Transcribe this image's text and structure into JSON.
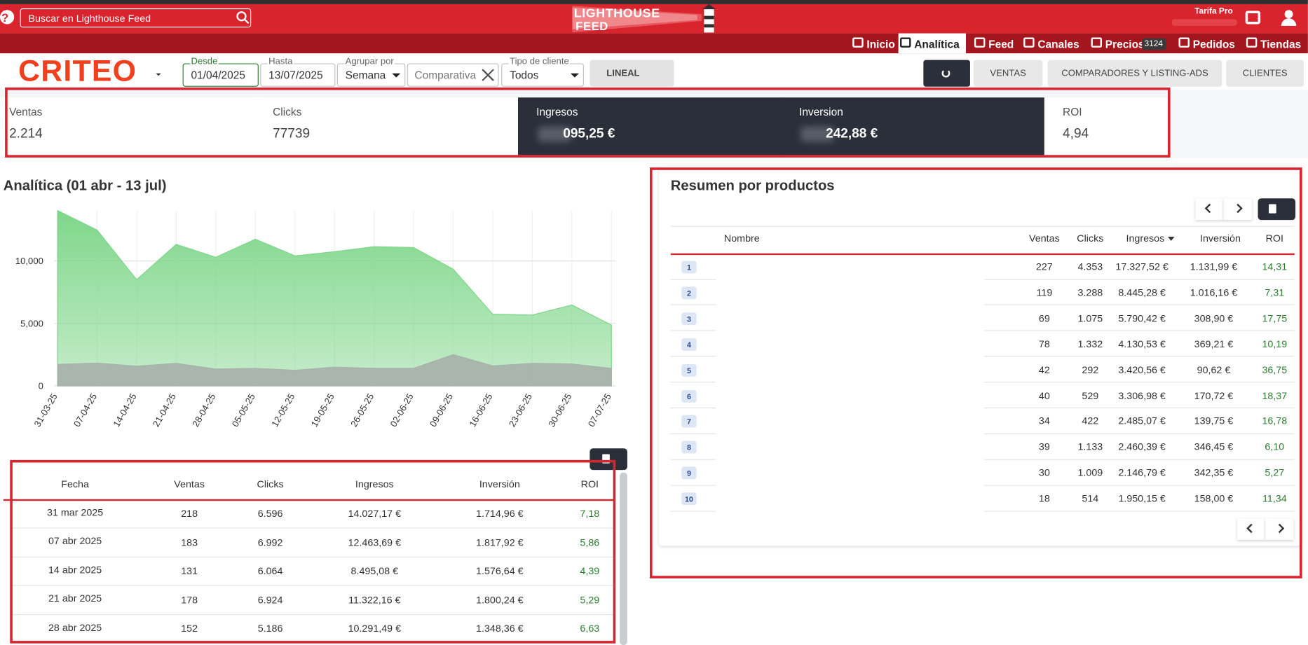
{
  "header": {
    "help": "?",
    "search_placeholder": "Buscar en Lighthouse Feed",
    "logo_line1": "LIGHTHOUSE",
    "logo_line2": "FEED",
    "plan": "Tarifa Pro"
  },
  "nav": [
    {
      "label": "Inicio"
    },
    {
      "label": "Analítica"
    },
    {
      "label": "Feed"
    },
    {
      "label": "Canales"
    },
    {
      "label": "Precios",
      "badge": "3124"
    },
    {
      "label": "Pedidos"
    },
    {
      "label": "Tiendas"
    }
  ],
  "filters": {
    "brand": "CRITEO",
    "fields": [
      {
        "label": "Desde",
        "value": "01/04/2025"
      },
      {
        "label": "Hasta",
        "value": "13/07/2025"
      },
      {
        "label": "Agrupar por",
        "value": "Semana"
      },
      {
        "label": "Tipo de cliente",
        "value": "Todos"
      }
    ],
    "comparison_placeholder": "Comparativa",
    "mode_button": "LINEAL"
  },
  "tabs": [
    "VENTAS",
    "COMPARADORES Y LISTING-ADS",
    "CLIENTES"
  ],
  "kpis": [
    {
      "label": "Ventas",
      "value": "2.214"
    },
    {
      "label": "Clicks",
      "value": "77739"
    },
    {
      "label": "Ingresos",
      "value": "095,25 €"
    },
    {
      "label": "Inversion",
      "value": "242,88 €"
    },
    {
      "label": "ROI",
      "value": "4,94"
    }
  ],
  "chart_data": {
    "type": "area",
    "title": "Analítica (01 abr - 13 jul)",
    "categories": [
      "31-03-25",
      "07-04-25",
      "14-04-25",
      "21-04-25",
      "28-04-25",
      "05-05-25",
      "12-05-25",
      "19-05-25",
      "26-05-25",
      "02-06-25",
      "09-06-25",
      "16-06-25",
      "23-06-25",
      "30-06-25",
      "07-07-25"
    ],
    "series": [
      {
        "color": "#7fd68a",
        "values": [
          14027,
          12464,
          8495,
          11322,
          10291,
          11733,
          10400,
          10733,
          11133,
          11067,
          9333,
          5733,
          5667,
          6467,
          4867
        ]
      },
      {
        "color": "#a7b0aa",
        "values": [
          1715,
          1818,
          1577,
          1800,
          1348,
          1400,
          1250,
          1500,
          1400,
          1400,
          2500,
          1600,
          1800,
          1750,
          1400
        ]
      }
    ],
    "ylim": [
      0,
      14000
    ],
    "yticks": [
      0,
      {
        "value": 5000,
        "label": "5,000"
      },
      {
        "value": 10000,
        "label": "10,000"
      }
    ],
    "grid": true
  },
  "weekly_table": {
    "columns": [
      "Fecha",
      "Ventas",
      "Clicks",
      "Ingresos",
      "Inversión",
      "ROI"
    ],
    "rows": [
      [
        "31 mar 2025",
        "218",
        "6.596",
        "14.027,17 €",
        "1.714,96 €",
        "7,18"
      ],
      [
        "07 abr 2025",
        "183",
        "6.992",
        "12.463,69 €",
        "1.817,92 €",
        "5,86"
      ],
      [
        "14 abr 2025",
        "131",
        "6.064",
        "8.495,08 €",
        "1.576,64 €",
        "4,39"
      ],
      [
        "21 abr 2025",
        "178",
        "6.924",
        "11.322,16 €",
        "1.800,24 €",
        "5,29"
      ],
      [
        "28 abr 2025",
        "152",
        "5.186",
        "10.291,49 €",
        "1.348,36 €",
        "6,63"
      ]
    ]
  },
  "products": {
    "title": "Resumen por productos",
    "columns": [
      "Nombre",
      "Ventas",
      "Clicks",
      "Ingresos",
      "Inversión",
      "ROI"
    ],
    "rows": [
      [
        "1",
        "227",
        "4.353",
        "17.327,52 €",
        "1.131,99 €",
        "14,31"
      ],
      [
        "2",
        "119",
        "3.288",
        "8.445,28 €",
        "1.016,16 €",
        "7,31"
      ],
      [
        "3",
        "69",
        "1.075",
        "5.790,42 €",
        "308,90 €",
        "17,75"
      ],
      [
        "4",
        "78",
        "1.332",
        "4.130,53 €",
        "369,21 €",
        "10,19"
      ],
      [
        "5",
        "42",
        "292",
        "3.420,56 €",
        "90,62 €",
        "36,75"
      ],
      [
        "6",
        "40",
        "529",
        "3.306,98 €",
        "170,72 €",
        "18,37"
      ],
      [
        "7",
        "34",
        "422",
        "2.485,07 €",
        "139,75 €",
        "16,78"
      ],
      [
        "8",
        "39",
        "1.133",
        "2.460,39 €",
        "346,45 €",
        "6,10"
      ],
      [
        "9",
        "30",
        "1.009",
        "2.146,79 €",
        "342,35 €",
        "5,27"
      ],
      [
        "10",
        "18",
        "514",
        "1.950,15 €",
        "158,00 €",
        "11,34"
      ]
    ]
  }
}
